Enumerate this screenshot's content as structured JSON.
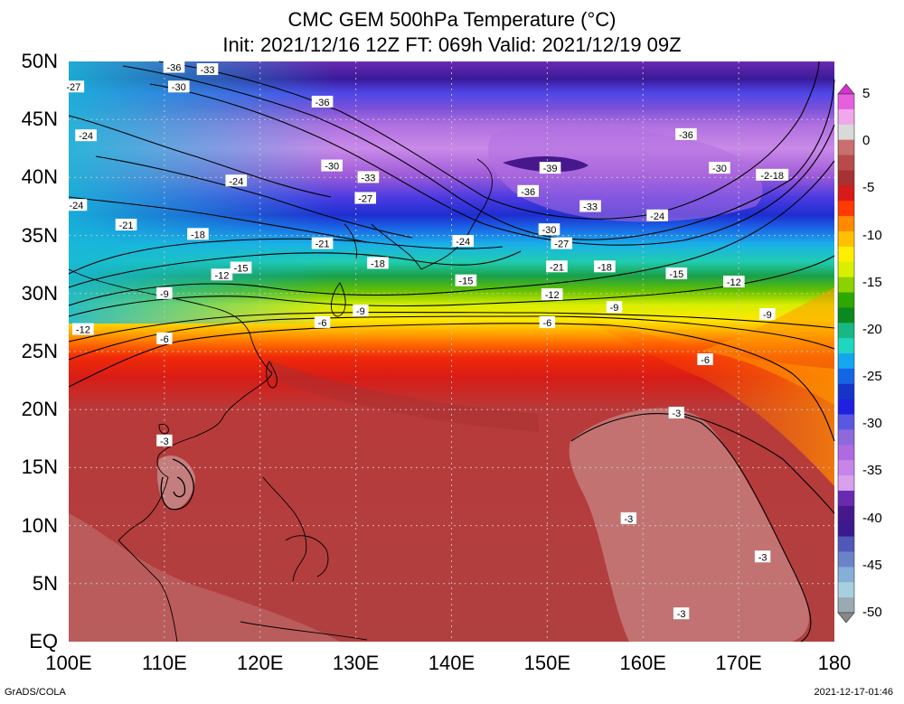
{
  "title": {
    "line1": "CMC GEM 500hPa Temperature (°C)",
    "line2": "Init: 2021/12/16 12Z  FT: 069h  Valid: 2021/12/19 09Z"
  },
  "axes": {
    "lat_labels": [
      "50N",
      "45N",
      "40N",
      "35N",
      "30N",
      "25N",
      "20N",
      "15N",
      "10N",
      "5N",
      "EQ"
    ],
    "lon_labels": [
      "100E",
      "110E",
      "120E",
      "130E",
      "140E",
      "150E",
      "160E",
      "170E",
      "180"
    ],
    "lat_range": [
      0,
      50
    ],
    "lon_range": [
      100,
      180
    ],
    "grid": "dotted"
  },
  "colorbar": {
    "labels": [
      "5",
      "0",
      "-5",
      "-10",
      "-15",
      "-20",
      "-25",
      "-30",
      "-35",
      "-40",
      "-45",
      "-50"
    ],
    "range": [
      -50,
      5
    ],
    "orientation": "vertical",
    "colors": [
      "#d82fd2",
      "#e65fe0",
      "#f0a7ec",
      "#d9d9d9",
      "#c96f6f",
      "#b84a4a",
      "#a83232",
      "#d71a1a",
      "#ff3a00",
      "#ff8a00",
      "#ffc000",
      "#ffee00",
      "#d8f000",
      "#8cd200",
      "#2ea800",
      "#0a8a1e",
      "#17b883",
      "#1fd6c0",
      "#15a6f0",
      "#1465e6",
      "#1435c8",
      "#2020e0",
      "#5a58e0",
      "#8f68dc",
      "#b06ae0",
      "#c884e8",
      "#d9a0ee",
      "#6a2ab0",
      "#46188c",
      "#3a1a8e",
      "#5258b8",
      "#6b82c8",
      "#86aed8",
      "#a7cfe0",
      "#9aaab0",
      "#888888"
    ]
  },
  "contour_labels": [
    {
      "text": "-36",
      "lon": 111.0,
      "lat": 49.5
    },
    {
      "text": "-33",
      "lon": 114.5,
      "lat": 49.3
    },
    {
      "text": "-30",
      "lon": 111.5,
      "lat": 47.8
    },
    {
      "text": "-27",
      "lon": 100.5,
      "lat": 47.8
    },
    {
      "text": "-36",
      "lon": 126.5,
      "lat": 46.5
    },
    {
      "text": "-24",
      "lon": 101.8,
      "lat": 43.6
    },
    {
      "text": "-36",
      "lon": 164.5,
      "lat": 43.7
    },
    {
      "text": "-30",
      "lon": 127.5,
      "lat": 41.0
    },
    {
      "text": "-33",
      "lon": 131.3,
      "lat": 40.0
    },
    {
      "text": "-39",
      "lon": 150.3,
      "lat": 40.8
    },
    {
      "text": "-30",
      "lon": 168.0,
      "lat": 40.8
    },
    {
      "text": "-2-18",
      "lon": 173.5,
      "lat": 40.2
    },
    {
      "text": "-24",
      "lon": 117.5,
      "lat": 39.7
    },
    {
      "text": "-36",
      "lon": 148.0,
      "lat": 38.8
    },
    {
      "text": "-27",
      "lon": 131.0,
      "lat": 38.2
    },
    {
      "text": "-24",
      "lon": 100.8,
      "lat": 37.6
    },
    {
      "text": "-33",
      "lon": 154.5,
      "lat": 37.5
    },
    {
      "text": "-24",
      "lon": 161.5,
      "lat": 36.7
    },
    {
      "text": "-21",
      "lon": 106.0,
      "lat": 35.9
    },
    {
      "text": "-30",
      "lon": 150.2,
      "lat": 35.5
    },
    {
      "text": "-18",
      "lon": 113.5,
      "lat": 35.1
    },
    {
      "text": "-24",
      "lon": 141.2,
      "lat": 34.5
    },
    {
      "text": "-21",
      "lon": 126.5,
      "lat": 34.3
    },
    {
      "text": "-27",
      "lon": 151.5,
      "lat": 34.3
    },
    {
      "text": "-18",
      "lon": 132.3,
      "lat": 32.6
    },
    {
      "text": "-21",
      "lon": 151.0,
      "lat": 32.3
    },
    {
      "text": "-18",
      "lon": 156.0,
      "lat": 32.3
    },
    {
      "text": "-15",
      "lon": 118.0,
      "lat": 32.2
    },
    {
      "text": "-12",
      "lon": 116.0,
      "lat": 31.6
    },
    {
      "text": "-15",
      "lon": 141.5,
      "lat": 31.1
    },
    {
      "text": "-15",
      "lon": 163.5,
      "lat": 31.7
    },
    {
      "text": "-12",
      "lon": 169.5,
      "lat": 31.0
    },
    {
      "text": "-9",
      "lon": 110.0,
      "lat": 30.0
    },
    {
      "text": "-12",
      "lon": 150.5,
      "lat": 29.9
    },
    {
      "text": "-9",
      "lon": 157.0,
      "lat": 28.8
    },
    {
      "text": "-9",
      "lon": 130.5,
      "lat": 28.5
    },
    {
      "text": "-9",
      "lon": 173.0,
      "lat": 28.2
    },
    {
      "text": "-6",
      "lon": 126.5,
      "lat": 27.5
    },
    {
      "text": "-6",
      "lon": 150.0,
      "lat": 27.5
    },
    {
      "text": "-12",
      "lon": 101.5,
      "lat": 26.9
    },
    {
      "text": "-6",
      "lon": 110.0,
      "lat": 26.1
    },
    {
      "text": "-6",
      "lon": 166.5,
      "lat": 24.3
    },
    {
      "text": "-3",
      "lon": 110.0,
      "lat": 17.3
    },
    {
      "text": "-3",
      "lon": 163.5,
      "lat": 19.7
    },
    {
      "text": "-3",
      "lon": 158.5,
      "lat": 10.6
    },
    {
      "text": "-3",
      "lon": 172.5,
      "lat": 7.3
    },
    {
      "text": "-3",
      "lon": 164.0,
      "lat": 2.4
    }
  ],
  "footer": {
    "left": "GrADS/COLA",
    "right": "2021-12-17-01:46"
  }
}
